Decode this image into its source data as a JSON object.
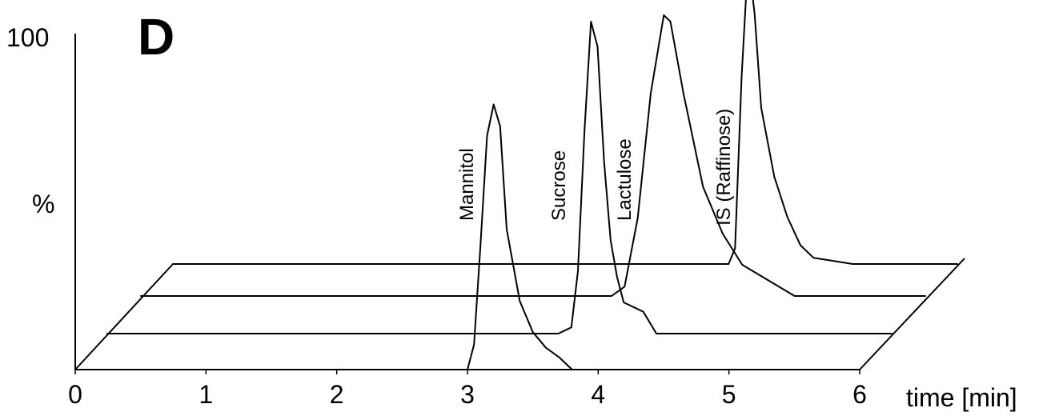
{
  "chart_data": {
    "type": "line",
    "panel_letter": "D",
    "xlabel": "time [min]",
    "ylabel": "%",
    "y_top_label": "100",
    "xlim": [
      0,
      6
    ],
    "ylim": [
      0,
      100
    ],
    "x_ticks": [
      0,
      1,
      2,
      3,
      4,
      5,
      6
    ],
    "grid": false,
    "layout_3d": "stacked traces in perspective, front to back",
    "series": [
      {
        "name": "Mannitol",
        "peak_time": 3.2,
        "peak_height": 85,
        "points": [
          [
            0,
            0
          ],
          [
            3.0,
            0
          ],
          [
            3.05,
            8
          ],
          [
            3.1,
            40
          ],
          [
            3.15,
            75
          ],
          [
            3.2,
            85
          ],
          [
            3.25,
            78
          ],
          [
            3.3,
            45
          ],
          [
            3.4,
            22
          ],
          [
            3.5,
            12
          ],
          [
            3.6,
            7
          ],
          [
            3.7,
            4
          ],
          [
            3.8,
            0
          ],
          [
            6,
            0
          ]
        ]
      },
      {
        "name": "Sucrose",
        "peak_time": 3.7,
        "peak_height": 100,
        "points": [
          [
            0,
            0
          ],
          [
            3.45,
            0
          ],
          [
            3.55,
            2
          ],
          [
            3.6,
            20
          ],
          [
            3.65,
            65
          ],
          [
            3.7,
            100
          ],
          [
            3.75,
            92
          ],
          [
            3.8,
            55
          ],
          [
            3.85,
            30
          ],
          [
            3.9,
            18
          ],
          [
            3.95,
            10
          ],
          [
            4.1,
            7
          ],
          [
            4.2,
            0
          ],
          [
            6,
            0
          ]
        ]
      },
      {
        "name": "Lactulose",
        "peak_time": 4.0,
        "peak_height": 90,
        "points": [
          [
            0,
            0
          ],
          [
            3.6,
            0
          ],
          [
            3.7,
            3
          ],
          [
            3.8,
            25
          ],
          [
            3.9,
            65
          ],
          [
            4.0,
            90
          ],
          [
            4.05,
            88
          ],
          [
            4.15,
            65
          ],
          [
            4.3,
            35
          ],
          [
            4.45,
            20
          ],
          [
            4.6,
            10
          ],
          [
            4.8,
            5
          ],
          [
            5.0,
            0
          ],
          [
            6,
            0
          ]
        ]
      },
      {
        "name": "IS (Raffinose)",
        "peak_time": 4.4,
        "peak_height": 98,
        "points": [
          [
            0,
            0
          ],
          [
            4.25,
            0
          ],
          [
            4.3,
            5
          ],
          [
            4.35,
            60
          ],
          [
            4.4,
            98
          ],
          [
            4.45,
            80
          ],
          [
            4.5,
            50
          ],
          [
            4.6,
            28
          ],
          [
            4.7,
            15
          ],
          [
            4.8,
            6
          ],
          [
            4.9,
            2
          ],
          [
            5.2,
            0
          ],
          [
            6,
            0
          ]
        ]
      }
    ]
  }
}
